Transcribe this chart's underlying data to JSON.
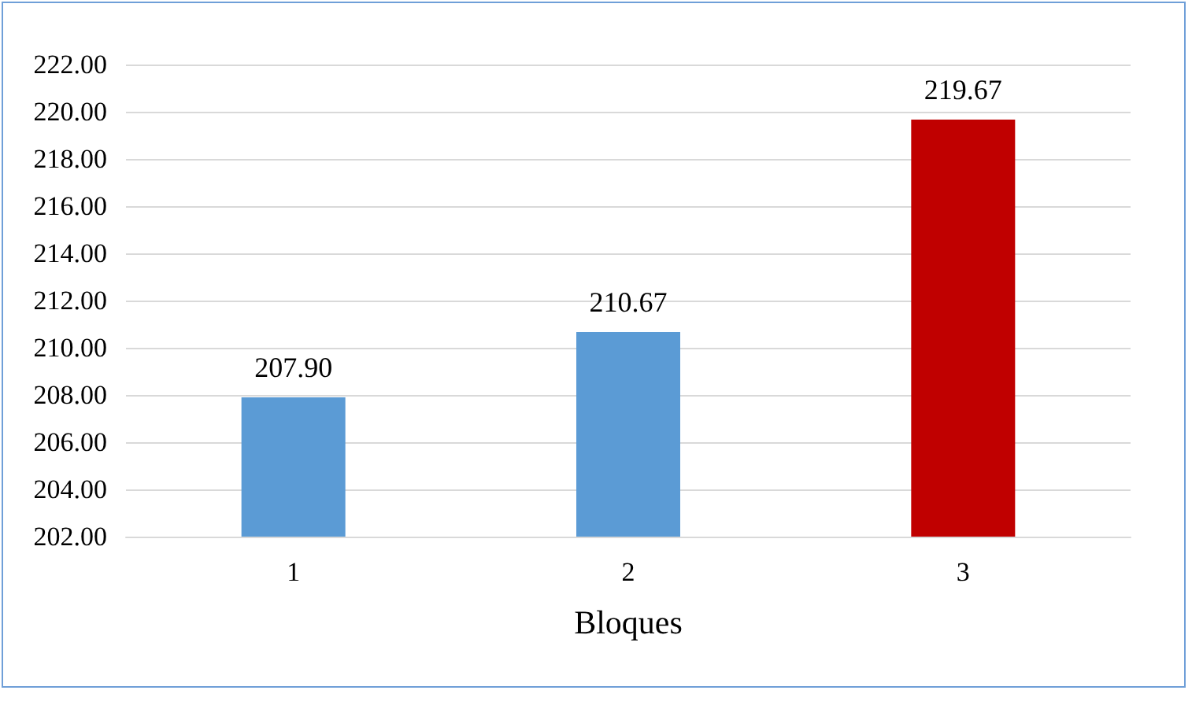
{
  "chart_data": {
    "type": "bar",
    "xlabel": "Bloques",
    "categories": [
      "1",
      "2",
      "3"
    ],
    "values": [
      207.9,
      210.67,
      219.67
    ],
    "colors": [
      "#5b9bd5",
      "#5b9bd5",
      "#c00000"
    ],
    "value_labels": [
      "207.90",
      "210.67",
      "219.67"
    ],
    "ylim": [
      202,
      222
    ],
    "yticks": [
      {
        "value": 202,
        "label": "202.00"
      },
      {
        "value": 204,
        "label": "204.00"
      },
      {
        "value": 206,
        "label": "206.00"
      },
      {
        "value": 208,
        "label": "208.00"
      },
      {
        "value": 210,
        "label": "210.00"
      },
      {
        "value": 212,
        "label": "212.00"
      },
      {
        "value": 214,
        "label": "214.00"
      },
      {
        "value": 216,
        "label": "216.00"
      },
      {
        "value": 218,
        "label": "218.00"
      },
      {
        "value": 220,
        "label": "220.00"
      },
      {
        "value": 222,
        "label": "222.00"
      }
    ],
    "grid": "y"
  }
}
